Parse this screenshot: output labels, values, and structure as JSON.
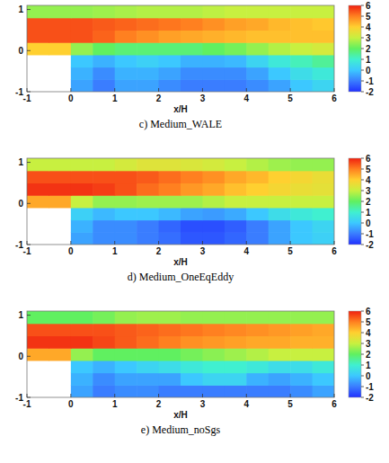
{
  "chart_data": [
    {
      "type": "heatmap",
      "title": "c) Medium_WALE",
      "x_label": "x/H",
      "xlim": [
        -1,
        6
      ],
      "ylim": [
        -1,
        1.1
      ],
      "xticks": [
        -1,
        0,
        1,
        2,
        3,
        4,
        5,
        6
      ],
      "yticks": [
        -1,
        0,
        1
      ],
      "x_edges": [
        -1,
        -0.5,
        0,
        0.5,
        1,
        1.5,
        2,
        2.5,
        3,
        3.5,
        4,
        4.5,
        5,
        5.5,
        6
      ],
      "y_edges": [
        -1,
        -0.7,
        -0.4,
        -0.1,
        0.2,
        0.5,
        0.8,
        1.1
      ],
      "cells": [
        [
          null,
          null,
          -0.5,
          -1,
          -0.5,
          -0.5,
          -0.8,
          -1,
          -1,
          -1,
          -0.8,
          -0.5,
          0,
          0.3
        ],
        [
          null,
          null,
          -0.3,
          -0.8,
          -0.3,
          -0.3,
          -0.5,
          -0.8,
          -0.8,
          -0.8,
          -0.5,
          0,
          0.5,
          0.8
        ],
        [
          null,
          null,
          0,
          -0.3,
          0,
          0.2,
          0,
          -0.3,
          -0.3,
          -0.2,
          0.3,
          0.8,
          1.2,
          1.5
        ],
        [
          4,
          4,
          2.5,
          2,
          1.8,
          1.8,
          1.8,
          1.8,
          2,
          2.2,
          2.5,
          2.8,
          3,
          3.2
        ],
        [
          5.5,
          5.5,
          5.5,
          5.3,
          5,
          4.8,
          4.6,
          4.5,
          4.4,
          4.3,
          4.2,
          4.2,
          4.2,
          4.2
        ],
        [
          5.5,
          5.5,
          5.5,
          5.4,
          5.3,
          5.2,
          5.1,
          5,
          4.8,
          4.6,
          4.5,
          4.3,
          4.2,
          4.1
        ],
        [
          2.5,
          2.5,
          2.5,
          2.6,
          2.7,
          2.8,
          2.8,
          2.8,
          2.9,
          3,
          3,
          3,
          3,
          3
        ]
      ],
      "colorbar_range": [
        -2,
        6
      ],
      "colorbar_ticks": [
        -2,
        -1,
        0,
        1,
        2,
        3,
        4,
        5,
        6
      ]
    },
    {
      "type": "heatmap",
      "title": "d) Medium_OneEqEddy",
      "x_label": "x/H",
      "xlim": [
        -1,
        6
      ],
      "ylim": [
        -1,
        1.1
      ],
      "xticks": [
        -1,
        0,
        1,
        2,
        3,
        4,
        5,
        6
      ],
      "yticks": [
        -1,
        0,
        1
      ],
      "x_edges": [
        -1,
        -0.5,
        0,
        0.5,
        1,
        1.5,
        2,
        2.5,
        3,
        3.5,
        4,
        4.5,
        5,
        5.5,
        6
      ],
      "y_edges": [
        -1,
        -0.7,
        -0.4,
        -0.1,
        0.2,
        0.5,
        0.8,
        1.1
      ],
      "cells": [
        [
          null,
          null,
          -0.5,
          -0.8,
          -0.8,
          -1,
          -1.2,
          -1.5,
          -1.5,
          -1.3,
          -1,
          -0.5,
          0,
          0.2
        ],
        [
          null,
          null,
          -0.3,
          -0.8,
          -0.8,
          -1,
          -1.3,
          -1.6,
          -1.6,
          -1.4,
          -1,
          -0.5,
          0,
          0.3
        ],
        [
          null,
          null,
          0.2,
          -0.2,
          0,
          0,
          -0.2,
          -0.5,
          -0.6,
          -0.4,
          0,
          0.5,
          0.8,
          1
        ],
        [
          4.5,
          4.5,
          3,
          2.5,
          2.5,
          2.6,
          2.6,
          2.6,
          2.8,
          3,
          3,
          3,
          3,
          3
        ],
        [
          5.8,
          5.8,
          5.8,
          5.7,
          5.5,
          5.2,
          5,
          4.7,
          4.5,
          4.2,
          4,
          3.8,
          3.6,
          3.5
        ],
        [
          5.5,
          5.5,
          5.5,
          5.5,
          5.5,
          5.4,
          5.2,
          5,
          4.8,
          4.5,
          4.3,
          4,
          3.8,
          3.6
        ],
        [
          3,
          3,
          3,
          3,
          3.2,
          3.4,
          3.4,
          3.3,
          3.2,
          3,
          2.8,
          2.6,
          2.5,
          2.5
        ]
      ],
      "colorbar_range": [
        -2,
        6
      ],
      "colorbar_ticks": [
        -2,
        -1,
        0,
        1,
        2,
        3,
        4,
        5,
        6
      ]
    },
    {
      "type": "heatmap",
      "title": "e) Medium_noSgs",
      "x_label": "x/H",
      "xlim": [
        -1,
        6
      ],
      "ylim": [
        -1,
        1.1
      ],
      "xticks": [
        -1,
        0,
        1,
        2,
        3,
        4,
        5,
        6
      ],
      "yticks": [
        -1,
        0,
        1
      ],
      "x_edges": [
        -1,
        -0.5,
        0,
        0.5,
        1,
        1.5,
        2,
        2.5,
        3,
        3.5,
        4,
        4.5,
        5,
        5.5,
        6
      ],
      "y_edges": [
        -1,
        -0.7,
        -0.4,
        -0.1,
        0.2,
        0.5,
        0.8,
        1.1
      ],
      "cells": [
        [
          null,
          null,
          -0.5,
          -1,
          -0.8,
          -0.8,
          -1,
          -1,
          -1,
          -1,
          -1,
          -1,
          -0.8,
          -0.5
        ],
        [
          null,
          null,
          -0.3,
          -0.8,
          -0.5,
          -0.5,
          -0.5,
          0,
          0.3,
          0.3,
          -0.3,
          -0.5,
          -0.3,
          0
        ],
        [
          null,
          null,
          0,
          -0.3,
          0,
          0.3,
          0.5,
          0.8,
          1,
          1,
          0.8,
          0.5,
          0.5,
          0.8
        ],
        [
          4.5,
          4.5,
          2.5,
          2,
          2,
          2,
          2,
          2.2,
          2.4,
          2.6,
          2.8,
          3,
          3,
          3
        ],
        [
          5.8,
          5.8,
          5.8,
          5.6,
          5.4,
          5.2,
          5,
          4.8,
          4.7,
          4.6,
          4.5,
          4.5,
          4.4,
          4.4
        ],
        [
          5.5,
          5.5,
          5.5,
          5.5,
          5.4,
          5.3,
          5.2,
          5.1,
          5,
          4.9,
          4.8,
          4.7,
          4.6,
          4.5
        ],
        [
          2,
          2,
          2,
          2.2,
          2.5,
          2.6,
          2.6,
          2.5,
          2.5,
          2.5,
          2.5,
          2.5,
          2.5,
          2.5
        ]
      ],
      "colorbar_range": [
        -2,
        6
      ],
      "colorbar_ticks": [
        -2,
        -1,
        0,
        1,
        2,
        3,
        4,
        5,
        6
      ]
    }
  ]
}
